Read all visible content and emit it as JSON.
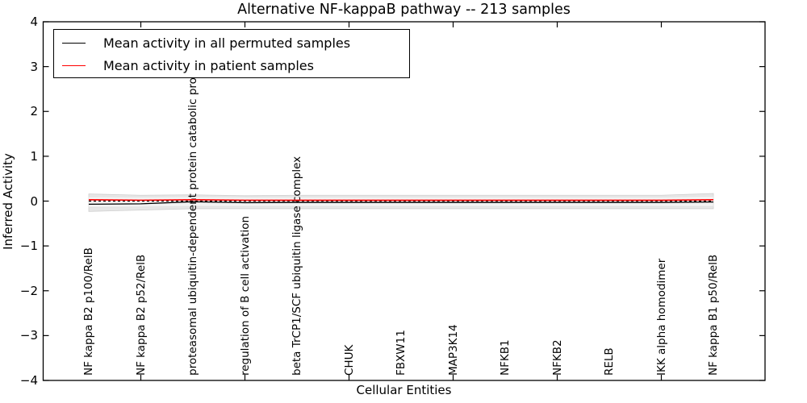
{
  "chart_data": {
    "type": "line",
    "title": "Alternative NF-kappaB pathway -- 213 samples",
    "xlabel": "Cellular Entities",
    "ylabel": "Inferred Activity",
    "ylim": [
      -4,
      4
    ],
    "ytick_labels": [
      "4",
      "3",
      "2",
      "1",
      "0",
      "−1",
      "−2",
      "−3",
      "−4"
    ],
    "ytick_values": [
      4,
      3,
      2,
      1,
      0,
      -1,
      -2,
      -3,
      -4
    ],
    "grid": false,
    "legend_position": "upper left",
    "categories": [
      "NF kappa B2 p100/RelB",
      "NF kappa B2 p52/RelB",
      "proteasomal ubiquitin-dependent protein catabolic process",
      "regulation of B cell activation",
      "beta TrCP1/SCF ubiquitin ligase complex",
      "CHUK",
      "FBXW11",
      "MAP3K14",
      "NFKB1",
      "NFKB2",
      "RELB",
      "IKK alpha homodimer",
      "NF kappa B1 p50/RelB"
    ],
    "series": [
      {
        "name": "Mean activity in all permuted samples",
        "color": "#000000",
        "values": [
          -0.07,
          -0.06,
          -0.015,
          -0.035,
          -0.03,
          -0.03,
          -0.03,
          -0.03,
          -0.03,
          -0.03,
          -0.03,
          -0.03,
          -0.02
        ]
      },
      {
        "name": "Mean activity in patient samples",
        "color": "#ff0000",
        "values": [
          0.03,
          0.02,
          0.03,
          0.02,
          0.02,
          0.02,
          0.02,
          0.02,
          0.02,
          0.02,
          0.02,
          0.02,
          0.03
        ]
      }
    ],
    "bands": [
      {
        "name": "permuted-activity-spread-outer",
        "color": "#e7e7e7",
        "edge_color": "#cfcfcf",
        "upper": [
          0.16,
          0.13,
          0.14,
          0.12,
          0.13,
          0.13,
          0.13,
          0.13,
          0.13,
          0.13,
          0.13,
          0.13,
          0.17
        ],
        "lower": [
          -0.23,
          -0.2,
          -0.17,
          -0.17,
          -0.17,
          -0.17,
          -0.17,
          -0.17,
          -0.17,
          -0.17,
          -0.17,
          -0.17,
          -0.17
        ]
      },
      {
        "name": "permuted-activity-spread-inner",
        "color": "#f3f3f3",
        "edge_color": "#e0e0e0",
        "upper": [
          0.1,
          0.09,
          0.1,
          0.09,
          0.09,
          0.09,
          0.09,
          0.09,
          0.09,
          0.09,
          0.09,
          0.09,
          0.11
        ],
        "lower": [
          -0.14,
          -0.13,
          -0.12,
          -0.12,
          -0.12,
          -0.12,
          -0.12,
          -0.12,
          -0.12,
          -0.12,
          -0.12,
          -0.12,
          -0.12
        ]
      }
    ],
    "zero_line": {
      "y": 0,
      "color": "#000000",
      "style": "dotted"
    }
  }
}
